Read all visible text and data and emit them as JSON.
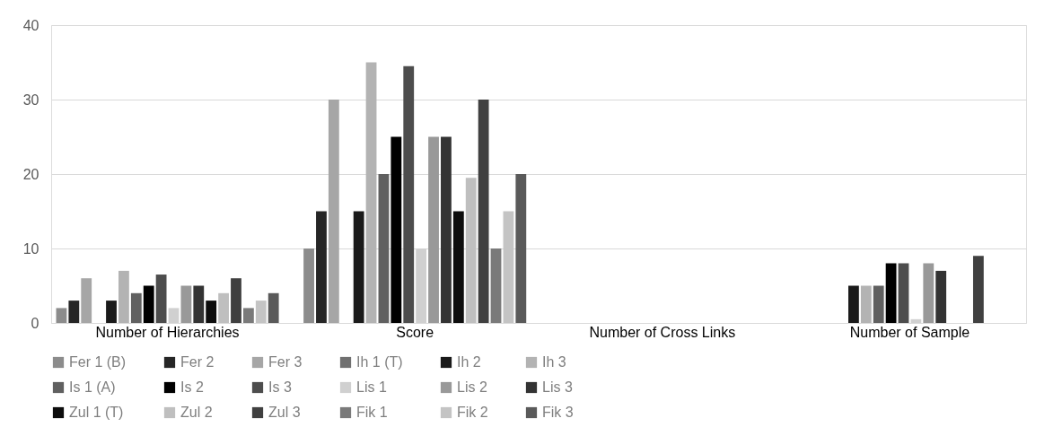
{
  "chart_data": {
    "type": "bar",
    "categories": [
      "Number of Hierarchies",
      "Score",
      "Number of Cross Links",
      "Number of  Sample"
    ],
    "series": [
      {
        "name": "Fer 1 (B)",
        "color": "#8c8c8c",
        "values": [
          2,
          10,
          0,
          0
        ]
      },
      {
        "name": "Fer 2",
        "color": "#262626",
        "values": [
          3,
          15,
          0,
          0
        ]
      },
      {
        "name": "Fer 3",
        "color": "#a6a6a6",
        "values": [
          6,
          30,
          0,
          0
        ]
      },
      {
        "name": "Ih 1 (T)",
        "color": "#707070",
        "values": [
          0,
          0,
          0,
          0
        ]
      },
      {
        "name": "Ih 2",
        "color": "#1a1a1a",
        "values": [
          3,
          15,
          0,
          5
        ]
      },
      {
        "name": "Ih 3",
        "color": "#b3b3b3",
        "values": [
          7,
          35,
          0,
          5
        ]
      },
      {
        "name": "Is 1 (A)",
        "color": "#606060",
        "values": [
          4,
          20,
          0,
          5
        ]
      },
      {
        "name": "Is 2",
        "color": "#000000",
        "values": [
          5,
          25,
          0,
          8
        ]
      },
      {
        "name": "Is 3",
        "color": "#4d4d4d",
        "values": [
          6.5,
          34.5,
          0,
          8
        ]
      },
      {
        "name": "Lis 1",
        "color": "#d0d0d0",
        "values": [
          2,
          10,
          0,
          0.5
        ]
      },
      {
        "name": "Lis 2",
        "color": "#999999",
        "values": [
          5,
          25,
          0,
          8
        ]
      },
      {
        "name": "Lis 3",
        "color": "#333333",
        "values": [
          5,
          25,
          0,
          7
        ]
      },
      {
        "name": "Zul 1 (T)",
        "color": "#0d0d0d",
        "values": [
          3,
          15,
          0,
          0
        ]
      },
      {
        "name": "Zul 2",
        "color": "#bfbfbf",
        "values": [
          4,
          19.5,
          0,
          0
        ]
      },
      {
        "name": "Zul 3",
        "color": "#404040",
        "values": [
          6,
          30,
          0,
          9
        ]
      },
      {
        "name": "Fik 1",
        "color": "#7a7a7a",
        "values": [
          2,
          10,
          0,
          0
        ]
      },
      {
        "name": "Fik 2",
        "color": "#c4c4c4",
        "values": [
          3,
          15,
          0,
          0
        ]
      },
      {
        "name": "Fik 3",
        "color": "#5a5a5a",
        "values": [
          4,
          20,
          0,
          0
        ]
      }
    ],
    "ylim": [
      0,
      40
    ],
    "yticks": [
      0,
      10,
      20,
      30,
      40
    ],
    "grid": "y",
    "legend": "bottom"
  }
}
